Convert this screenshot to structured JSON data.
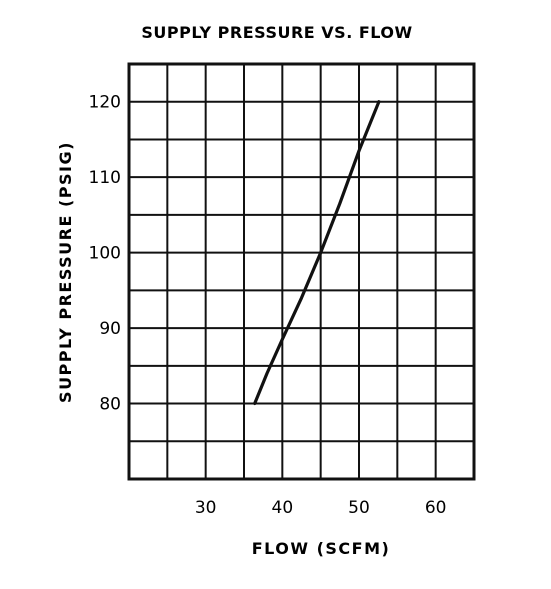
{
  "chart_data": {
    "type": "line",
    "title": "SUPPLY PRESSURE VS. FLOW",
    "xlabel": "FLOW (SCFM)",
    "ylabel": "SUPPLY PRESSURE (PSIG)",
    "xlim": [
      20,
      65
    ],
    "ylim": [
      70,
      125
    ],
    "x_ticks": [
      30,
      40,
      50,
      60
    ],
    "y_ticks": [
      80,
      90,
      100,
      110,
      120
    ],
    "x_grid": [
      20,
      25,
      30,
      35,
      40,
      45,
      50,
      55,
      60,
      65
    ],
    "y_grid": [
      70,
      75,
      80,
      85,
      90,
      95,
      100,
      105,
      110,
      115,
      120,
      125
    ],
    "grid": true,
    "colors": {
      "line": "#111111",
      "grid": "#111111",
      "background": "#ffffff"
    },
    "series": [
      {
        "x": [
          36.4,
          38.0,
          40.0,
          42.5,
          45.0,
          47.5,
          50.0,
          52.6
        ],
        "y": [
          80,
          84,
          88.5,
          94,
          100,
          106.5,
          113.5,
          120
        ]
      }
    ]
  }
}
